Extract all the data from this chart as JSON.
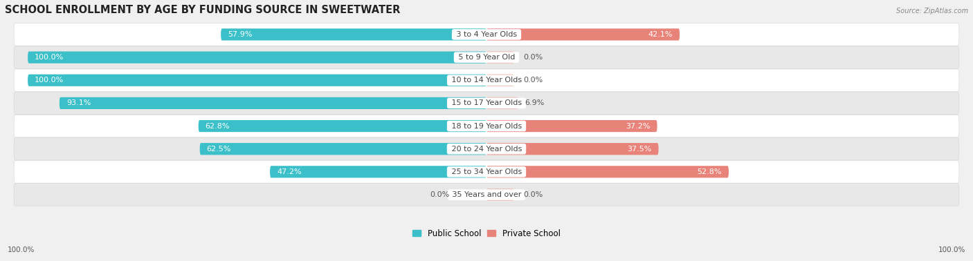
{
  "title": "SCHOOL ENROLLMENT BY AGE BY FUNDING SOURCE IN SWEETWATER",
  "source": "Source: ZipAtlas.com",
  "categories": [
    "3 to 4 Year Olds",
    "5 to 9 Year Old",
    "10 to 14 Year Olds",
    "15 to 17 Year Olds",
    "18 to 19 Year Olds",
    "20 to 24 Year Olds",
    "25 to 34 Year Olds",
    "35 Years and over"
  ],
  "public_values": [
    57.9,
    100.0,
    100.0,
    93.1,
    62.8,
    62.5,
    47.2,
    0.0
  ],
  "private_values": [
    42.1,
    0.0,
    0.0,
    6.9,
    37.2,
    37.5,
    52.8,
    0.0
  ],
  "public_color": "#3BBFC9",
  "private_color": "#E8837A",
  "private_color_light": "#F2AFA9",
  "public_label": "Public School",
  "private_label": "Private School",
  "bar_height": 0.52,
  "bg_color": "#f0f0f0",
  "row_bg_light": "#ffffff",
  "row_bg_dark": "#e8e8e8",
  "axis_label_left": "100.0%",
  "axis_label_right": "100.0%",
  "title_fontsize": 10.5,
  "value_fontsize": 8,
  "category_fontsize": 8
}
